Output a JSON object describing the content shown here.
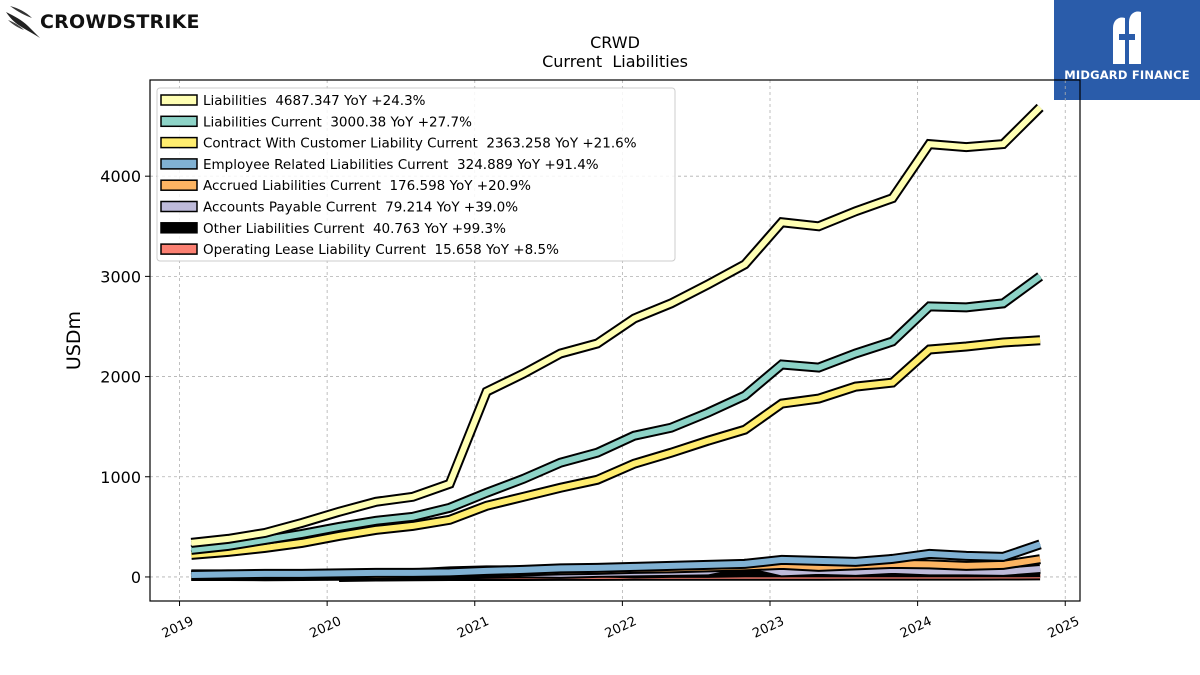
{
  "brand": {
    "left_logo_text": "CROWDSTRIKE",
    "right_logo_text": "MIDGARD FINANCE",
    "right_logo_bg": "#2a5caa"
  },
  "chart_data": {
    "type": "line",
    "title": "CRWD",
    "subtitle": "Current  Liabilities",
    "xlabel": "",
    "ylabel": "USDm",
    "x_tick_labels": [
      "2019",
      "2020",
      "2021",
      "2022",
      "2023",
      "2024",
      "2025"
    ],
    "y_tick_labels": [
      "0",
      "1000",
      "2000",
      "3000",
      "4000"
    ],
    "xlim": [
      2018.8,
      2025.1
    ],
    "ylim": [
      -240,
      4960
    ],
    "grid": true,
    "legend_position": "top-left",
    "x": [
      2019.08,
      2019.33,
      2019.58,
      2019.83,
      2020.08,
      2020.33,
      2020.58,
      2020.83,
      2021.08,
      2021.33,
      2021.58,
      2021.83,
      2022.08,
      2022.33,
      2022.58,
      2022.83,
      2023.08,
      2023.33,
      2023.58,
      2023.83,
      2024.08,
      2024.33,
      2024.58,
      2024.83
    ],
    "series": [
      {
        "name": "Liabilities",
        "legend": "Liabilities  4687.347 YoY +24.3%",
        "color": "#ffffb3",
        "values": [
          340,
          380,
          440,
          540,
          650,
          750,
          800,
          930,
          1850,
          2030,
          2230,
          2330,
          2580,
          2730,
          2920,
          3120,
          3540,
          3500,
          3650,
          3780,
          4320,
          4290,
          4320,
          4687
        ]
      },
      {
        "name": "Liabilities Current",
        "legend": "Liabilities Current  3000.38 YoY +27.7%",
        "color": "#8dd3c7",
        "values": [
          270,
          310,
          370,
          430,
          500,
          560,
          600,
          690,
          840,
          980,
          1140,
          1240,
          1410,
          1490,
          1640,
          1810,
          2120,
          2090,
          2230,
          2350,
          2700,
          2690,
          2730,
          3000
        ]
      },
      {
        "name": "Contract With Customer Liability Current",
        "legend": "Contract With Customer Liability Current  2363.258 YoY +21.6%",
        "color": "#ffed6f",
        "values": [
          220,
          250,
          290,
          340,
          410,
          470,
          510,
          570,
          710,
          800,
          890,
          970,
          1130,
          1240,
          1360,
          1470,
          1730,
          1780,
          1900,
          1940,
          2270,
          2300,
          2340,
          2363
        ]
      },
      {
        "name": "Employee Related Liabilities Current",
        "legend": "Employee Related Liabilities Current  324.889 YoY +91.4%",
        "color": "#80b1d3",
        "values": [
          20,
          25,
          30,
          30,
          35,
          40,
          40,
          45,
          60,
          70,
          85,
          90,
          100,
          110,
          120,
          130,
          170,
          160,
          150,
          180,
          230,
          210,
          200,
          325
        ]
      },
      {
        "name": "Accrued Liabilities Current",
        "legend": "Accrued Liabilities Current  176.598 YoY +20.9%",
        "color": "#fdb462",
        "values": [
          10,
          10,
          15,
          15,
          20,
          20,
          25,
          30,
          45,
          55,
          65,
          70,
          80,
          85,
          95,
          105,
          120,
          100,
          115,
          130,
          125,
          110,
          120,
          177
        ]
      },
      {
        "name": "Accounts Payable Current",
        "legend": "Accounts Payable Current  79.214 YoY +39.0%",
        "color": "#bebada",
        "values": [
          10,
          10,
          8,
          10,
          12,
          15,
          20,
          25,
          30,
          35,
          30,
          40,
          45,
          50,
          55,
          130,
          45,
          60,
          50,
          70,
          55,
          55,
          50,
          79
        ]
      },
      {
        "name": "Other Liabilities Current",
        "legend": "Other Liabilities Current  40.763 YoY +99.3%",
        "color": "#000000",
        "values": [
          30,
          30,
          25,
          30,
          35,
          35,
          40,
          60,
          70,
          70,
          60,
          40,
          30,
          35,
          35,
          40,
          40,
          40,
          40,
          40,
          40,
          40,
          40,
          41
        ]
      },
      {
        "name": "Operating Lease Liability Current",
        "legend": "Operating Lease Liability Current  15.658 YoY +8.5%",
        "color": "#fb8072",
        "values": [
          null,
          null,
          null,
          null,
          0,
          5,
          8,
          10,
          10,
          10,
          11,
          11,
          12,
          12,
          12,
          13,
          13,
          13,
          14,
          14,
          14,
          14,
          15,
          16
        ]
      }
    ]
  }
}
